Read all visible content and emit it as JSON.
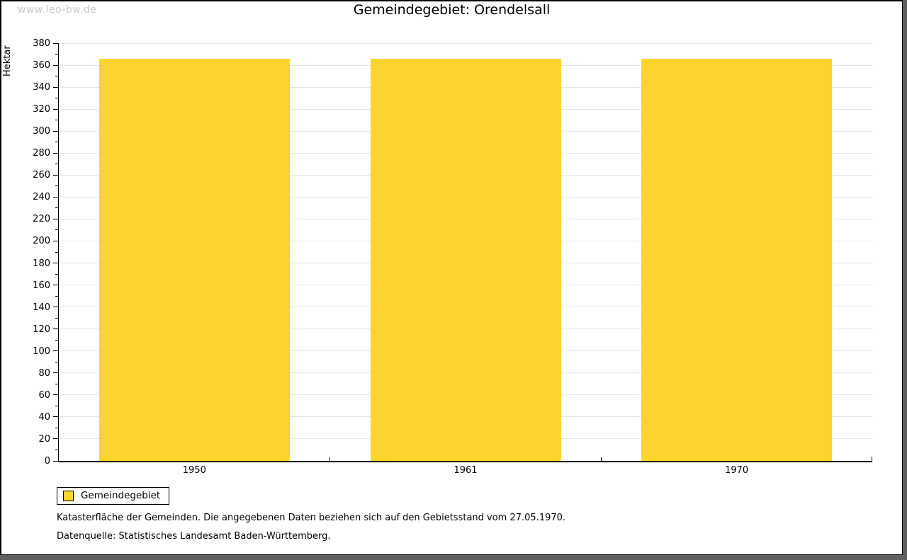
{
  "watermark": "www.leo-bw.de",
  "header": {
    "title": "Gemeindegebiet: Orendelsall"
  },
  "legend": {
    "label": "Gemeindegebiet"
  },
  "footnotes": {
    "line1": "Katasterfläche der Gemeinden. Die angegebenen Daten beziehen sich auf den Gebietsstand vom 27.05.1970.",
    "line2": "Datenquelle: Statistisches Landesamt Baden-Württemberg."
  },
  "chart_data": {
    "type": "bar",
    "title": "Gemeindegebiet: Orendelsall",
    "categories": [
      "1950",
      "1961",
      "1970"
    ],
    "series": [
      {
        "name": "Gemeindegebiet",
        "values": [
          366,
          366,
          366
        ]
      }
    ],
    "xlabel": "",
    "ylabel": "Hektar",
    "ylim": [
      0,
      380
    ],
    "y_tick_step": 20,
    "y_minor_tick_step": 10,
    "grid": true,
    "legend_position": "bottom-left",
    "bar_color": "#FDD42D",
    "grid_color": "#e5e5e5",
    "units": "Hektar"
  }
}
